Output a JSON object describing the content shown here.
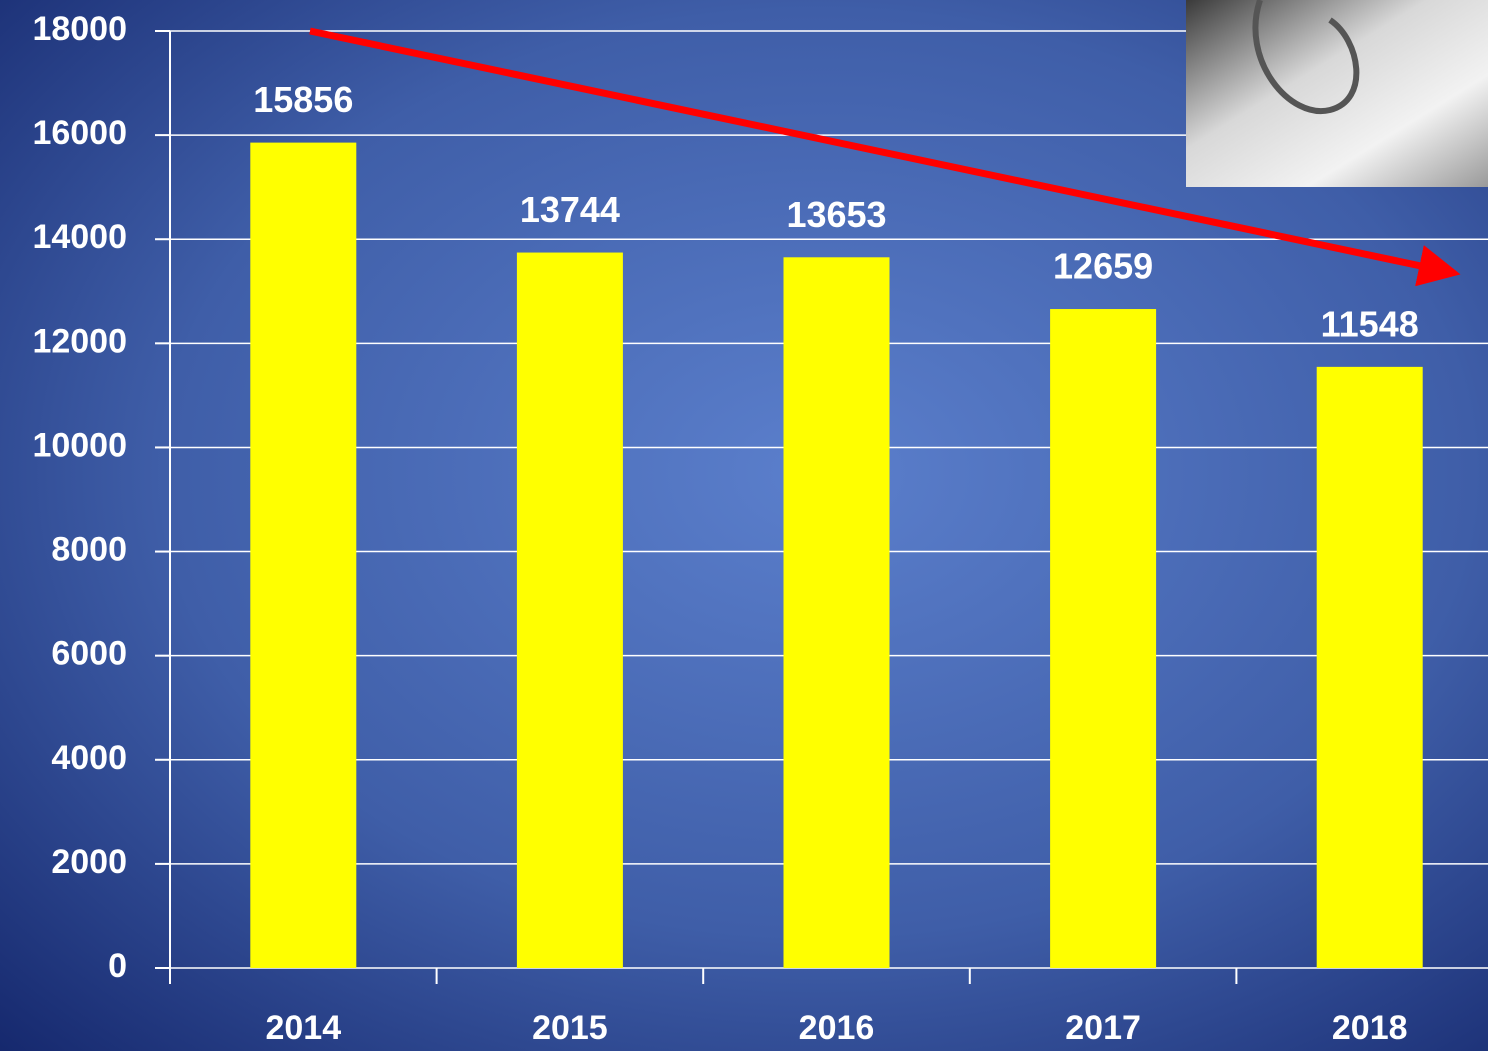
{
  "chart_data": {
    "type": "bar",
    "categories": [
      "2014",
      "2015",
      "2016",
      "2017",
      "2018"
    ],
    "values": [
      15856,
      13744,
      13653,
      12659,
      11548
    ],
    "color": "#ffff00",
    "ylim": [
      0,
      18000
    ],
    "yticks": [
      0,
      2000,
      4000,
      6000,
      8000,
      10000,
      12000,
      14000,
      16000,
      18000
    ],
    "grid": true
  }
}
